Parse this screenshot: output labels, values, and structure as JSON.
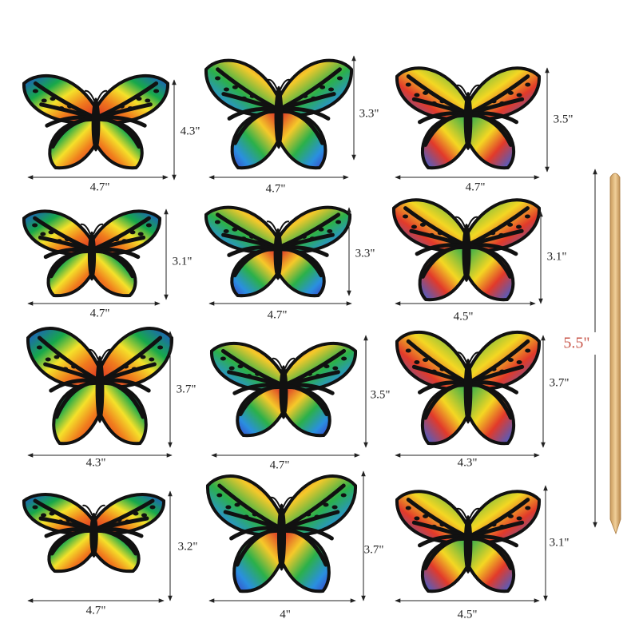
{
  "butterflies": [
    {
      "width": "4.7\"",
      "height": "4.3\""
    },
    {
      "width": "4.7\"",
      "height": "3.3\""
    },
    {
      "width": "4.7\"",
      "height": "3.5\""
    },
    {
      "width": "4.7\"",
      "height": "3.1\""
    },
    {
      "width": "4.7\"",
      "height": "3.3\""
    },
    {
      "width": "4.5\"",
      "height": "3.1\""
    },
    {
      "width": "4.3\"",
      "height": "3.7\""
    },
    {
      "width": "4.7\"",
      "height": "3.5\""
    },
    {
      "width": "4.3\"",
      "height": "3.7\""
    },
    {
      "width": "4.7\"",
      "height": "3.2\""
    },
    {
      "width": "4\"",
      "height": "3.7\""
    },
    {
      "width": "4.5\"",
      "height": "3.1\""
    }
  ],
  "stick": {
    "length": "5.5\""
  }
}
